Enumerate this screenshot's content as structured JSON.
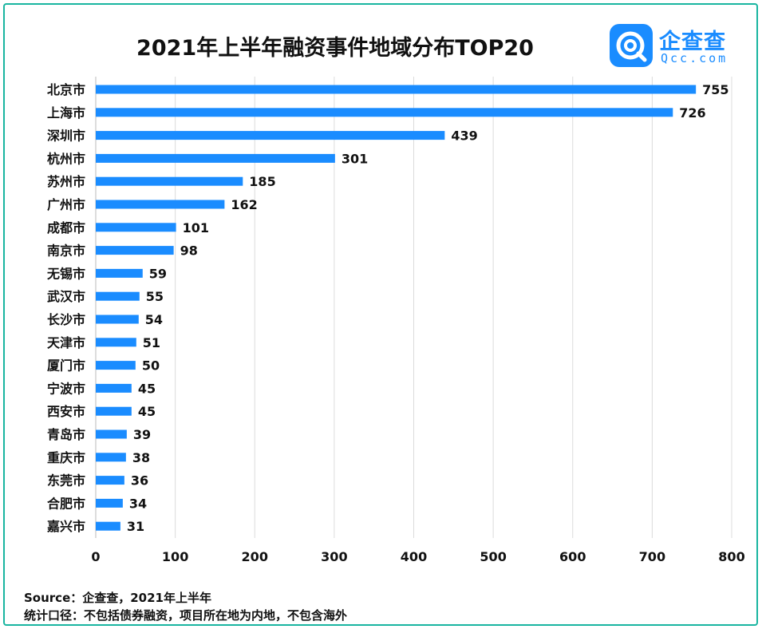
{
  "header": {
    "title": "2021年上半年融资事件地域分布TOP20"
  },
  "logo": {
    "cn": "企查查",
    "en": "Qcc.com"
  },
  "footer": {
    "source": "Source：企查查，2021年上半年",
    "note": "统计口径：不包括债券融资，项目所在地为内地，不包含海外"
  },
  "colors": {
    "bar": "#1a8cff",
    "grid": "#dcdcdc",
    "border": "#19b5a0"
  },
  "chart_data": {
    "type": "bar",
    "orientation": "horizontal",
    "title": "2021年上半年融资事件地域分布TOP20",
    "categories": [
      "北京市",
      "上海市",
      "深圳市",
      "杭州市",
      "苏州市",
      "广州市",
      "成都市",
      "南京市",
      "无锡市",
      "武汉市",
      "长沙市",
      "天津市",
      "厦门市",
      "宁波市",
      "西安市",
      "青岛市",
      "重庆市",
      "东莞市",
      "合肥市",
      "嘉兴市"
    ],
    "values": [
      755,
      726,
      439,
      301,
      185,
      162,
      101,
      98,
      59,
      55,
      54,
      51,
      50,
      45,
      45,
      39,
      38,
      36,
      34,
      31
    ],
    "xlim": [
      0,
      800
    ],
    "xticks": [
      0,
      100,
      200,
      300,
      400,
      500,
      600,
      700,
      800
    ],
    "grid": "vertical",
    "data_labels": true
  }
}
